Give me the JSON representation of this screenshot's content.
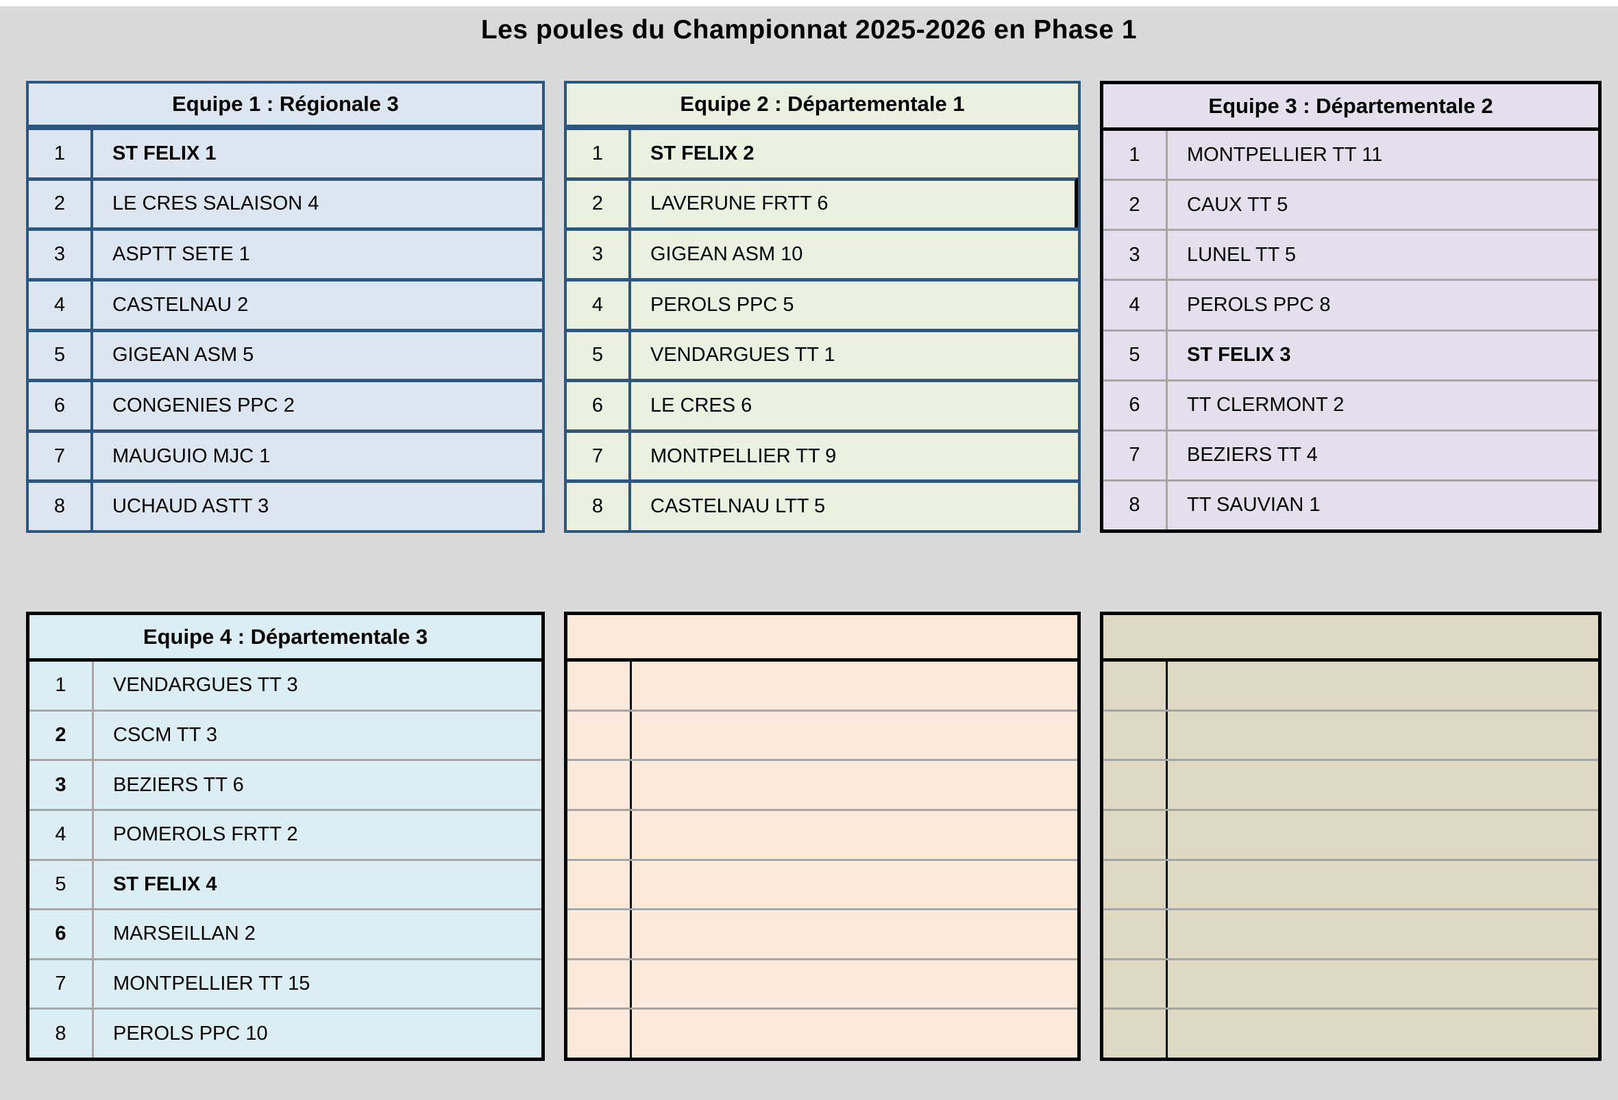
{
  "title": "Les poules du Championnat 2025-2026 en Phase 1",
  "colors": {
    "page_background": "#d9d9d9",
    "blue_border": "#2b5781",
    "black_border": "#000000",
    "grid_line_gray": "#a6a6a6",
    "table1_fill": "#dce6f1",
    "table2_fill": "#ebf1de",
    "table3_fill": "#e4dfec",
    "table4_fill": "#daeef3",
    "table5_fill": "#fde9d9",
    "table6_fill": "#ddd9c3"
  },
  "tables": [
    {
      "header": "Equipe 1 : Régionale 3",
      "fill": "#dce6f1",
      "rows": [
        {
          "num": "1",
          "team": "ST FELIX 1",
          "team_bold": true
        },
        {
          "num": "2",
          "team": "LE CRES SALAISON 4"
        },
        {
          "num": "3",
          "team": "ASPTT SETE 1"
        },
        {
          "num": "4",
          "team": "CASTELNAU 2"
        },
        {
          "num": "5",
          "team": "GIGEAN ASM 5"
        },
        {
          "num": "6",
          "team": "CONGENIES PPC 2"
        },
        {
          "num": "7",
          "team": "MAUGUIO MJC 1"
        },
        {
          "num": "8",
          "team": "UCHAUD ASTT 3"
        }
      ]
    },
    {
      "header": "Equipe 2 : Départementale 1",
      "fill": "#ebf1de",
      "rows": [
        {
          "num": "1",
          "team": "ST FELIX 2",
          "team_bold": true
        },
        {
          "num": "2",
          "team": "LAVERUNE FRTT 6",
          "black_right": true
        },
        {
          "num": "3",
          "team": "GIGEAN ASM 10"
        },
        {
          "num": "4",
          "team": "PEROLS PPC 5"
        },
        {
          "num": "5",
          "team": "VENDARGUES TT 1"
        },
        {
          "num": "6",
          "team": "LE CRES 6"
        },
        {
          "num": "7",
          "team": "MONTPELLIER TT 9"
        },
        {
          "num": "8",
          "team": "CASTELNAU LTT 5"
        }
      ]
    },
    {
      "header": "Equipe 3 : Départementale 2",
      "fill": "#e4dfec",
      "rows": [
        {
          "num": "1",
          "team": "MONTPELLIER TT 11"
        },
        {
          "num": "2",
          "team": "CAUX TT 5"
        },
        {
          "num": "3",
          "team": "LUNEL TT 5"
        },
        {
          "num": "4",
          "team": "PEROLS PPC 8"
        },
        {
          "num": "5",
          "team": "ST FELIX 3",
          "team_bold": true
        },
        {
          "num": "6",
          "team": "TT CLERMONT 2"
        },
        {
          "num": "7",
          "team": "BEZIERS TT 4"
        },
        {
          "num": "8",
          "team": "TT SAUVIAN 1"
        }
      ]
    },
    {
      "header": "Equipe 4 : Départementale 3",
      "fill": "#daeef3",
      "rows": [
        {
          "num": "1",
          "team": "VENDARGUES TT 3"
        },
        {
          "num": "2",
          "team": "CSCM TT 3",
          "num_bold": true
        },
        {
          "num": "3",
          "team": "BEZIERS TT 6",
          "num_bold": true
        },
        {
          "num": "4",
          "team": "POMEROLS FRTT 2"
        },
        {
          "num": "5",
          "team": "ST FELIX 4",
          "team_bold": true
        },
        {
          "num": "6",
          "team": "MARSEILLAN 2",
          "num_bold": true
        },
        {
          "num": "7",
          "team": "MONTPELLIER TT 15"
        },
        {
          "num": "8",
          "team": "PEROLS PPC 10"
        }
      ]
    },
    {
      "header": "",
      "fill": "#fde9d9",
      "rows": [
        {
          "num": "",
          "team": ""
        },
        {
          "num": "",
          "team": ""
        },
        {
          "num": "",
          "team": ""
        },
        {
          "num": "",
          "team": ""
        },
        {
          "num": "",
          "team": ""
        },
        {
          "num": "",
          "team": ""
        },
        {
          "num": "",
          "team": ""
        },
        {
          "num": "",
          "team": ""
        }
      ]
    },
    {
      "header": "",
      "fill": "#ddd9c3",
      "rows": [
        {
          "num": "",
          "team": ""
        },
        {
          "num": "",
          "team": ""
        },
        {
          "num": "",
          "team": ""
        },
        {
          "num": "",
          "team": ""
        },
        {
          "num": "",
          "team": ""
        },
        {
          "num": "",
          "team": ""
        },
        {
          "num": "",
          "team": ""
        },
        {
          "num": "",
          "team": ""
        }
      ]
    }
  ]
}
